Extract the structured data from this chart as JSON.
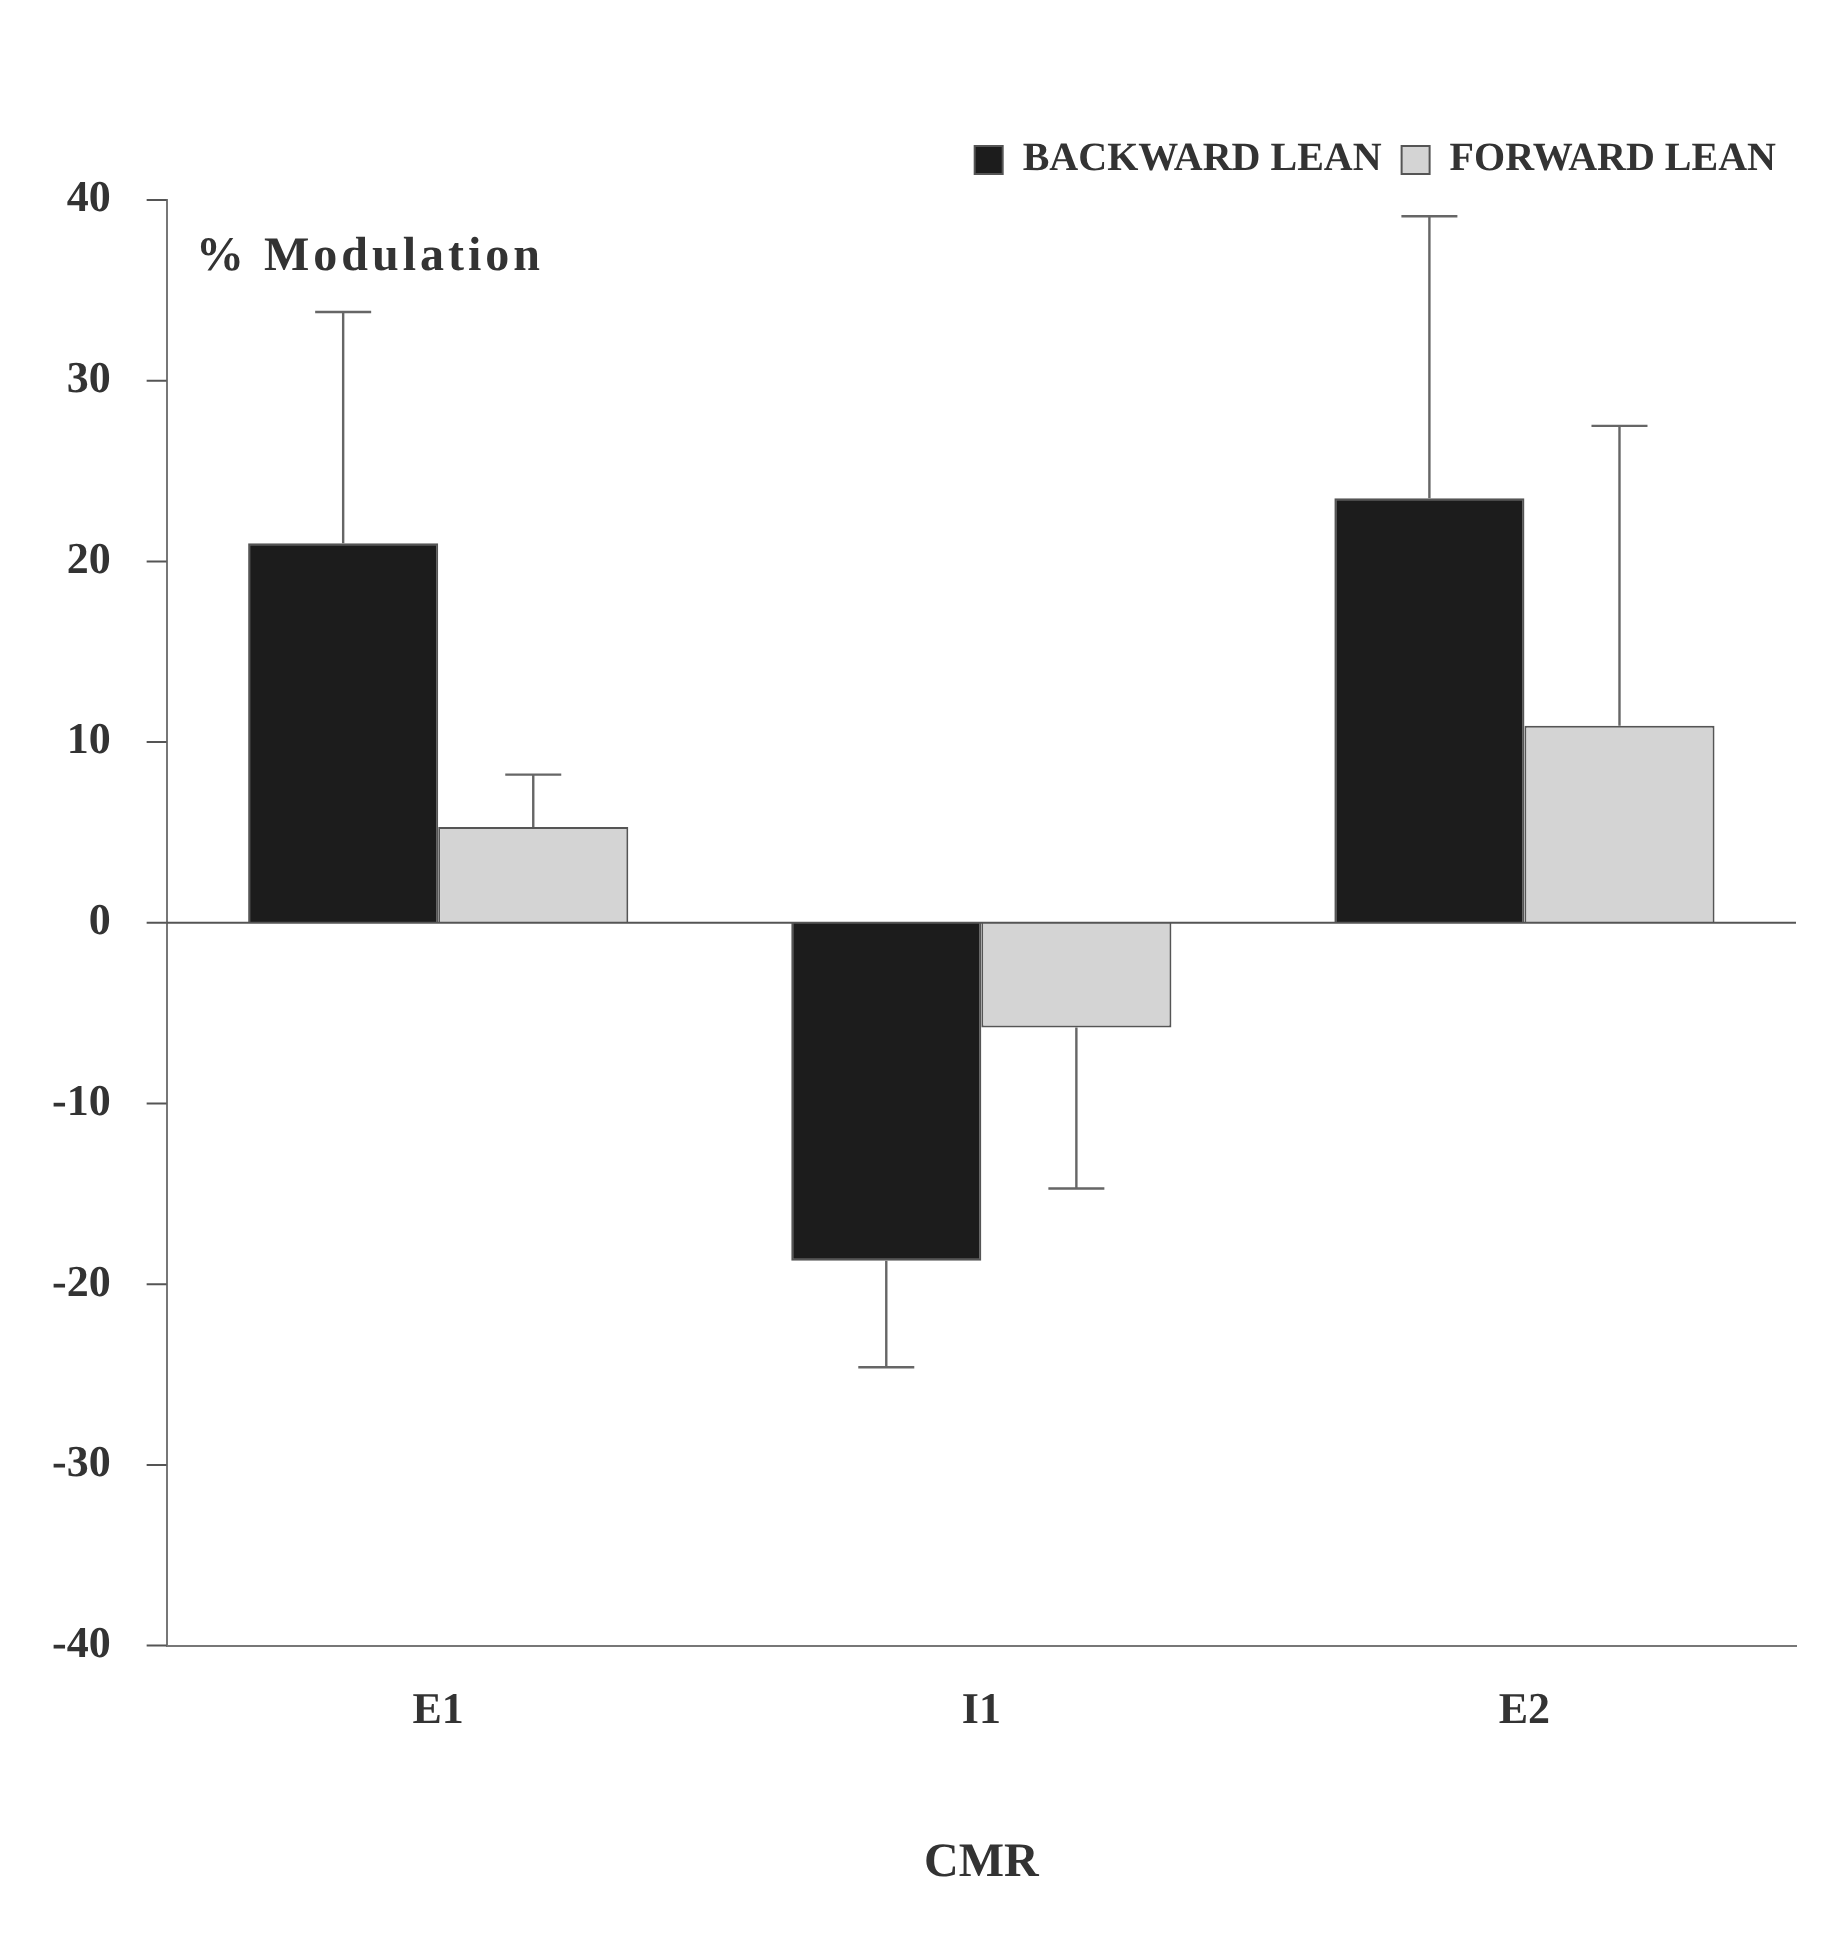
{
  "chart_data": {
    "type": "bar",
    "ylabel": "% Modulation",
    "xlabel": "CMR",
    "categories": [
      "E1",
      "I1",
      "E2"
    ],
    "series": [
      {
        "name": "BACKWARD LEAN",
        "color": "#1c1c1c",
        "values": [
          21.0,
          -18.7,
          23.5
        ],
        "errors": [
          [
            21.0,
            33.8
          ],
          [
            -24.6,
            -18.7
          ],
          [
            23.5,
            39.1
          ]
        ]
      },
      {
        "name": "FORWARD LEAN",
        "color": "#d4d4d4",
        "values": [
          5.3,
          -5.8,
          10.9
        ],
        "errors": [
          [
            5.3,
            8.2
          ],
          [
            -14.7,
            -5.8
          ],
          [
            10.9,
            27.5
          ]
        ]
      }
    ],
    "ref_lines": [
      {
        "axis": "y",
        "value": 0,
        "color": "#555555"
      }
    ],
    "ylim": [
      -40,
      40
    ],
    "yticks": [
      -40,
      -30,
      -20,
      -10,
      0,
      10,
      20,
      30,
      40
    ],
    "grid": false,
    "legend": "top right"
  }
}
